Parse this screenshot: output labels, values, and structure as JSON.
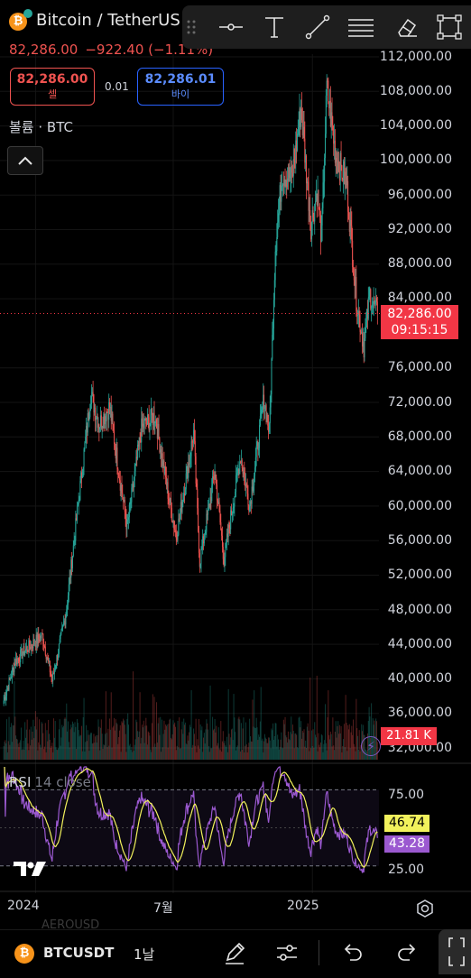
{
  "header": {
    "coin_glyph": "₿",
    "title": "Bitcoin / TetherUS",
    "price": "82,286.00",
    "change": "−922.40 (−1.11%)",
    "sell": {
      "value": "82,286.00",
      "label": "셀"
    },
    "spread": "0.01",
    "buy": {
      "value": "82,286.01",
      "label": "바이"
    },
    "volume_label": "볼륨 · BTC"
  },
  "toolbar": {
    "icons": [
      "drag-handle-icon",
      "horizontal-line-icon",
      "text-icon",
      "trend-line-icon",
      "fib-icon",
      "eraser-icon",
      "rectangle-icon"
    ]
  },
  "price_axis": {
    "labels": [
      "112,000.00",
      "108,000.00",
      "104,000.00",
      "100,000.00",
      "96,000.00",
      "92,000.00",
      "88,000.00",
      "84,000.00",
      "76,000.00",
      "72,000.00",
      "68,000.00",
      "64,000.00",
      "60,000.00",
      "56,000.00",
      "52,000.00",
      "48,000.00",
      "44,000.00",
      "40,000.00",
      "36,000.00",
      "32,000.00"
    ],
    "current_price": "82,286.00",
    "countdown": "09:15:15",
    "volume_value": "21.81 K"
  },
  "rsi": {
    "label": "RSI",
    "params": "14 close",
    "levels": [
      "75.00",
      "25.00"
    ],
    "ma_value": "46.74",
    "rsi_value": "43.28"
  },
  "time_axis": {
    "labels": [
      "2024",
      "7월",
      "2025"
    ]
  },
  "bottom_bar": {
    "symbol": "BTCUSDT",
    "interval": "1날",
    "faded_text": "AEROUSD"
  },
  "colors": {
    "up": "#26a69a",
    "down": "#ef5350",
    "rsi_line": "#9b59d0",
    "rsi_ma": "#f2f25c",
    "price_tag": "#f23645"
  },
  "chart_data": {
    "type": "candlestick",
    "timeframe": "1D",
    "x_range": [
      "2023-11-15",
      "2025-03-30"
    ],
    "ylim": [
      31000,
      113000
    ],
    "y_ticks": [
      32000,
      36000,
      40000,
      44000,
      48000,
      52000,
      56000,
      60000,
      64000,
      68000,
      72000,
      76000,
      84000,
      88000,
      92000,
      96000,
      100000,
      104000,
      108000,
      112000
    ],
    "last_price": 82286.0,
    "close_path": [
      {
        "date": "2023-11-20",
        "close": 37500
      },
      {
        "date": "2023-12-05",
        "close": 42000
      },
      {
        "date": "2023-12-20",
        "close": 43500
      },
      {
        "date": "2024-01-10",
        "close": 45000
      },
      {
        "date": "2024-01-23",
        "close": 39800
      },
      {
        "date": "2024-02-10",
        "close": 47500
      },
      {
        "date": "2024-02-28",
        "close": 61500
      },
      {
        "date": "2024-03-14",
        "close": 73000
      },
      {
        "date": "2024-03-25",
        "close": 69500
      },
      {
        "date": "2024-04-08",
        "close": 71500
      },
      {
        "date": "2024-04-20",
        "close": 64000
      },
      {
        "date": "2024-05-01",
        "close": 57500
      },
      {
        "date": "2024-05-20",
        "close": 69000
      },
      {
        "date": "2024-06-07",
        "close": 70500
      },
      {
        "date": "2024-06-25",
        "close": 61000
      },
      {
        "date": "2024-07-05",
        "close": 56500
      },
      {
        "date": "2024-07-28",
        "close": 68500
      },
      {
        "date": "2024-08-05",
        "close": 53500
      },
      {
        "date": "2024-08-25",
        "close": 64000
      },
      {
        "date": "2024-09-06",
        "close": 53800
      },
      {
        "date": "2024-09-28",
        "close": 65800
      },
      {
        "date": "2024-10-10",
        "close": 60000
      },
      {
        "date": "2024-10-29",
        "close": 72500
      },
      {
        "date": "2024-11-05",
        "close": 68500
      },
      {
        "date": "2024-11-13",
        "close": 90000
      },
      {
        "date": "2024-11-22",
        "close": 98500
      },
      {
        "date": "2024-12-05",
        "close": 98000
      },
      {
        "date": "2024-12-17",
        "close": 106000
      },
      {
        "date": "2024-12-30",
        "close": 92500
      },
      {
        "date": "2025-01-07",
        "close": 96500
      },
      {
        "date": "2025-01-13",
        "close": 91000
      },
      {
        "date": "2025-01-20",
        "close": 108500
      },
      {
        "date": "2025-02-01",
        "close": 100500
      },
      {
        "date": "2025-02-15",
        "close": 97500
      },
      {
        "date": "2025-02-28",
        "close": 84000
      },
      {
        "date": "2025-03-10",
        "close": 78500
      },
      {
        "date": "2025-03-18",
        "close": 84500
      },
      {
        "date": "2025-03-28",
        "close": 82286
      }
    ],
    "rsi": {
      "period": 14,
      "ylim": [
        10,
        90
      ],
      "levels": [
        75,
        25
      ],
      "last_rsi": 43.28,
      "last_ma": 46.74
    }
  }
}
